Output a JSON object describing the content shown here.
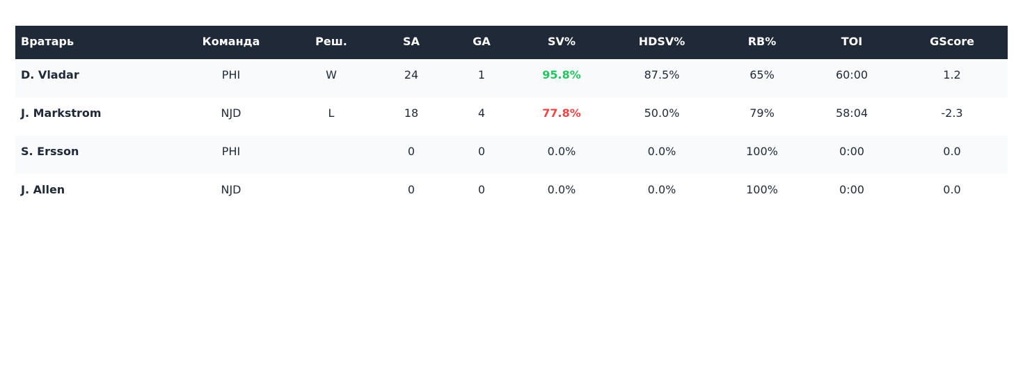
{
  "table": {
    "headers": [
      "Вратарь",
      "Команда",
      "Реш.",
      "SA",
      "GA",
      "SV%",
      "HDSV%",
      "RB%",
      "TOI",
      "GScore"
    ],
    "rows": [
      {
        "goalie": "D. Vladar",
        "team": "PHI",
        "decision": "W",
        "sa": "24",
        "ga": "1",
        "sv": "95.8%",
        "sv_status": "good",
        "hdsv": "87.5%",
        "rb": "65%",
        "toi": "60:00",
        "gscore": "1.2"
      },
      {
        "goalie": "J. Markstrom",
        "team": "NJD",
        "decision": "L",
        "sa": "18",
        "ga": "4",
        "sv": "77.8%",
        "sv_status": "bad",
        "hdsv": "50.0%",
        "rb": "79%",
        "toi": "58:04",
        "gscore": "-2.3"
      },
      {
        "goalie": "S. Ersson",
        "team": "PHI",
        "decision": "",
        "sa": "0",
        "ga": "0",
        "sv": "0.0%",
        "sv_status": "neutral",
        "hdsv": "0.0%",
        "rb": "100%",
        "toi": "0:00",
        "gscore": "0.0"
      },
      {
        "goalie": "J. Allen",
        "team": "NJD",
        "decision": "",
        "sa": "0",
        "ga": "0",
        "sv": "0.0%",
        "sv_status": "neutral",
        "hdsv": "0.0%",
        "rb": "100%",
        "toi": "0:00",
        "gscore": "0.0"
      }
    ]
  },
  "colors": {
    "header_bg": "#1f2937",
    "good": "#22c55e",
    "bad": "#ef4444",
    "stripe": "#f8fafc"
  }
}
